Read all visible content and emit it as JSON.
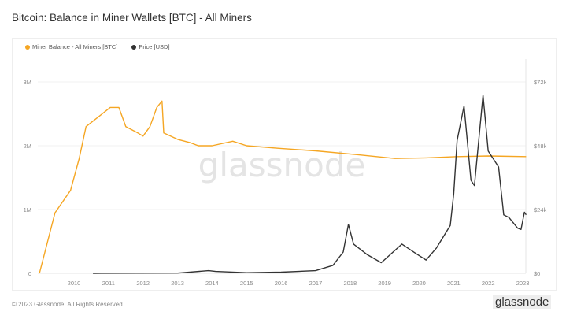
{
  "title": "Bitcoin: Balance in Miner Wallets [BTC] - All Miners",
  "footer": "© 2023 Glassnode. All Rights Reserved.",
  "logo": "glassnode",
  "chart_data": {
    "type": "line",
    "title": "Bitcoin: Balance in Miner Wallets [BTC] - All Miners",
    "watermark": "glassnode",
    "legend_position": "top-left",
    "grid": true,
    "x_ticks": [
      "2010",
      "2011",
      "2012",
      "2013",
      "2014",
      "2015",
      "2016",
      "2017",
      "2018",
      "2019",
      "2020",
      "2021",
      "2022",
      "2023"
    ],
    "xlim": [
      2009.0,
      2023.15
    ],
    "y_left": {
      "ticks": [
        "0",
        "1M",
        "2M",
        "3M"
      ],
      "ylim": [
        0,
        3000000
      ]
    },
    "y_right": {
      "ticks": [
        "$0",
        "$24k",
        "$48k",
        "$72k"
      ],
      "ylim": [
        0,
        72000
      ]
    },
    "series": [
      {
        "name": "Miner Balance - All Miners [BTC]",
        "color": "#f5a623",
        "axis": "left",
        "x": [
          2009.0,
          2009.45,
          2009.9,
          2010.15,
          2010.35,
          2010.7,
          2011.05,
          2011.3,
          2011.5,
          2011.85,
          2012.0,
          2012.2,
          2012.4,
          2012.55,
          2012.6,
          2013.0,
          2013.35,
          2013.6,
          2014.0,
          2014.6,
          2015.0,
          2015.9,
          2017.0,
          2018.2,
          2019.3,
          2020.2,
          2021.1,
          2022.0,
          2023.1
        ],
        "y": [
          0,
          950000,
          1300000,
          1800000,
          2300000,
          2450000,
          2600000,
          2600000,
          2300000,
          2200000,
          2150000,
          2300000,
          2600000,
          2700000,
          2200000,
          2100000,
          2050000,
          2000000,
          2000000,
          2070000,
          2000000,
          1960000,
          1920000,
          1860000,
          1800000,
          1810000,
          1830000,
          1840000,
          1830000
        ]
      },
      {
        "name": "Price [USD]",
        "color": "#333333",
        "axis": "right",
        "x": [
          2010.55,
          2013.0,
          2013.9,
          2014.1,
          2015.0,
          2016.0,
          2017.0,
          2017.5,
          2017.8,
          2017.95,
          2018.1,
          2018.5,
          2018.9,
          2019.5,
          2019.9,
          2020.2,
          2020.5,
          2020.9,
          2021.0,
          2021.1,
          2021.3,
          2021.5,
          2021.6,
          2021.85,
          2022.0,
          2022.2,
          2022.3,
          2022.45,
          2022.6,
          2022.85,
          2022.95,
          2023.05,
          2023.1
        ],
        "y": [
          0,
          100,
          1000,
          700,
          250,
          450,
          1000,
          3000,
          8000,
          18400,
          11000,
          7000,
          4000,
          11000,
          7500,
          5000,
          9500,
          18000,
          30000,
          50000,
          63000,
          35000,
          33000,
          67000,
          46000,
          42000,
          40000,
          22000,
          21000,
          17000,
          16500,
          23000,
          22000
        ]
      }
    ]
  }
}
